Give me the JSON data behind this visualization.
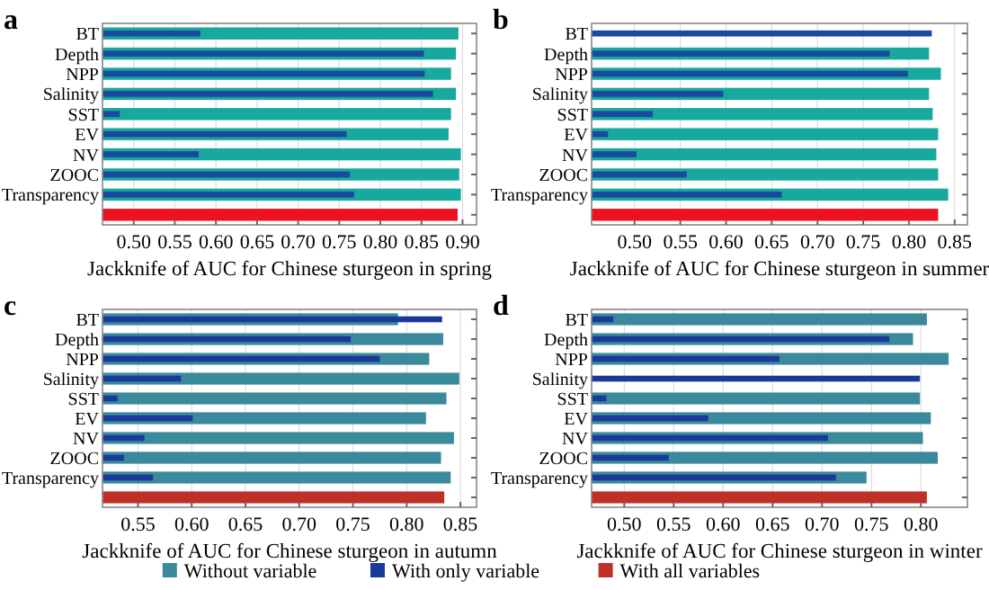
{
  "chart_data": [
    {
      "type": "bar",
      "orientation": "horizontal",
      "xlabel": "Jackknife of AUC for Chinese sturgeon in spring",
      "annotations": [
        "a"
      ],
      "categories": [
        "BT",
        "Depth",
        "NPP",
        "Salinity",
        "SST",
        "EV",
        "NV",
        "ZOOC",
        "Transparency",
        null
      ],
      "xlim": [
        0.462,
        0.917
      ],
      "xticks": [
        {
          "value": 0.5,
          "label": "0.50"
        },
        {
          "value": 0.55,
          "label": "0.55"
        },
        {
          "value": 0.6,
          "label": "0.60"
        },
        {
          "value": 0.65,
          "label": "0.65"
        },
        {
          "value": 0.7,
          "label": "0.70"
        },
        {
          "value": 0.75,
          "label": "0.75"
        },
        {
          "value": 0.8,
          "label": "0.80"
        },
        {
          "value": 0.85,
          "label": "0.85"
        },
        {
          "value": 0.9,
          "label": "0.90"
        }
      ],
      "grid": "x",
      "series": [
        {
          "color": "#17a89e",
          "values": [
            0.895,
            0.892,
            0.886,
            0.892,
            0.886,
            0.883,
            0.898,
            0.896,
            0.898,
            null
          ]
        },
        {
          "color": "#1a4a9e",
          "values": [
            0.581,
            0.853,
            0.854,
            0.864,
            0.483,
            0.759,
            0.579,
            0.763,
            0.768,
            null
          ]
        },
        {
          "color": "#ee1122",
          "values": [
            null,
            null,
            null,
            null,
            null,
            null,
            null,
            null,
            null,
            0.894
          ]
        }
      ]
    },
    {
      "type": "bar",
      "orientation": "horizontal",
      "xlabel": "Jackknife of AUC for Chinese sturgeon in summer",
      "annotations": [
        "b"
      ],
      "categories": [
        "BT",
        "Depth",
        "NPP",
        "Salinity",
        "SST",
        "EV",
        "NV",
        "ZOOC",
        "Transparency",
        null
      ],
      "xlim": [
        0.453,
        0.864
      ],
      "xticks": [
        {
          "value": 0.5,
          "label": "0.50"
        },
        {
          "value": 0.55,
          "label": "0.55"
        },
        {
          "value": 0.6,
          "label": "0.60"
        },
        {
          "value": 0.65,
          "label": "0.65"
        },
        {
          "value": 0.7,
          "label": "0.70"
        },
        {
          "value": 0.75,
          "label": "0.75"
        },
        {
          "value": 0.8,
          "label": "0.80"
        },
        {
          "value": 0.85,
          "label": "0.85"
        }
      ],
      "grid": "x",
      "series": [
        {
          "color": "#17a89e",
          "values": [
            null,
            0.822,
            0.835,
            0.822,
            0.826,
            0.832,
            0.83,
            0.832,
            0.843,
            null
          ]
        },
        {
          "color": "#1a4a9e",
          "values": [
            0.825,
            0.779,
            0.799,
            0.597,
            0.52,
            0.471,
            0.502,
            0.557,
            0.661,
            null
          ]
        },
        {
          "color": "#ee1122",
          "values": [
            null,
            null,
            null,
            null,
            null,
            null,
            null,
            null,
            null,
            0.832
          ]
        }
      ]
    },
    {
      "type": "bar",
      "orientation": "horizontal",
      "xlabel": "Jackknife of AUC for Chinese sturgeon in autumn",
      "annotations": [
        "c"
      ],
      "categories": [
        "BT",
        "Depth",
        "NPP",
        "Salinity",
        "SST",
        "EV",
        "NV",
        "ZOOC",
        "Transparency",
        null
      ],
      "xlim": [
        0.517,
        0.865
      ],
      "xticks": [
        {
          "value": 0.55,
          "label": "0.55"
        },
        {
          "value": 0.6,
          "label": "0.60"
        },
        {
          "value": 0.65,
          "label": "0.65"
        },
        {
          "value": 0.7,
          "label": "0.70"
        },
        {
          "value": 0.75,
          "label": "0.75"
        },
        {
          "value": 0.8,
          "label": "0.80"
        },
        {
          "value": 0.85,
          "label": "0.85"
        }
      ],
      "grid": "x",
      "series": [
        {
          "color": "#3a8a9c",
          "values": [
            0.792,
            0.834,
            0.821,
            0.849,
            0.837,
            0.818,
            0.844,
            0.832,
            0.841,
            null
          ]
        },
        {
          "color": "#1a3a9a",
          "values": [
            0.833,
            0.748,
            0.775,
            0.59,
            0.531,
            0.601,
            0.556,
            0.537,
            0.564,
            null
          ]
        },
        {
          "color": "#c03028",
          "values": [
            null,
            null,
            null,
            null,
            null,
            null,
            null,
            null,
            null,
            0.835
          ]
        }
      ]
    },
    {
      "type": "bar",
      "orientation": "horizontal",
      "xlabel": "Jackknife of AUC for Chinese sturgeon in winter",
      "annotations": [
        "d"
      ],
      "categories": [
        "BT",
        "Depth",
        "NPP",
        "Salinity",
        "SST",
        "EV",
        "NV",
        "ZOOC",
        "Transparency",
        null
      ],
      "xlim": [
        0.467,
        0.847
      ],
      "xticks": [
        {
          "value": 0.5,
          "label": "0.50"
        },
        {
          "value": 0.55,
          "label": "0.55"
        },
        {
          "value": 0.6,
          "label": "0.60"
        },
        {
          "value": 0.65,
          "label": "0.65"
        },
        {
          "value": 0.7,
          "label": "0.70"
        },
        {
          "value": 0.75,
          "label": "0.75"
        },
        {
          "value": 0.8,
          "label": "0.80"
        }
      ],
      "grid": "x",
      "legend": "bottom",
      "series": [
        {
          "name": "Without variable",
          "color": "#3a8a9c",
          "values": [
            0.806,
            0.792,
            0.828,
            null,
            0.799,
            0.81,
            0.802,
            0.817,
            0.745,
            null
          ]
        },
        {
          "name": "With only variable",
          "color": "#1a3a9a",
          "values": [
            0.489,
            0.768,
            0.657,
            0.799,
            0.482,
            0.585,
            0.706,
            0.545,
            0.714,
            null
          ]
        },
        {
          "name": "With all variables",
          "color": "#c03028",
          "values": [
            null,
            null,
            null,
            null,
            null,
            null,
            null,
            null,
            null,
            0.806
          ]
        }
      ]
    }
  ]
}
